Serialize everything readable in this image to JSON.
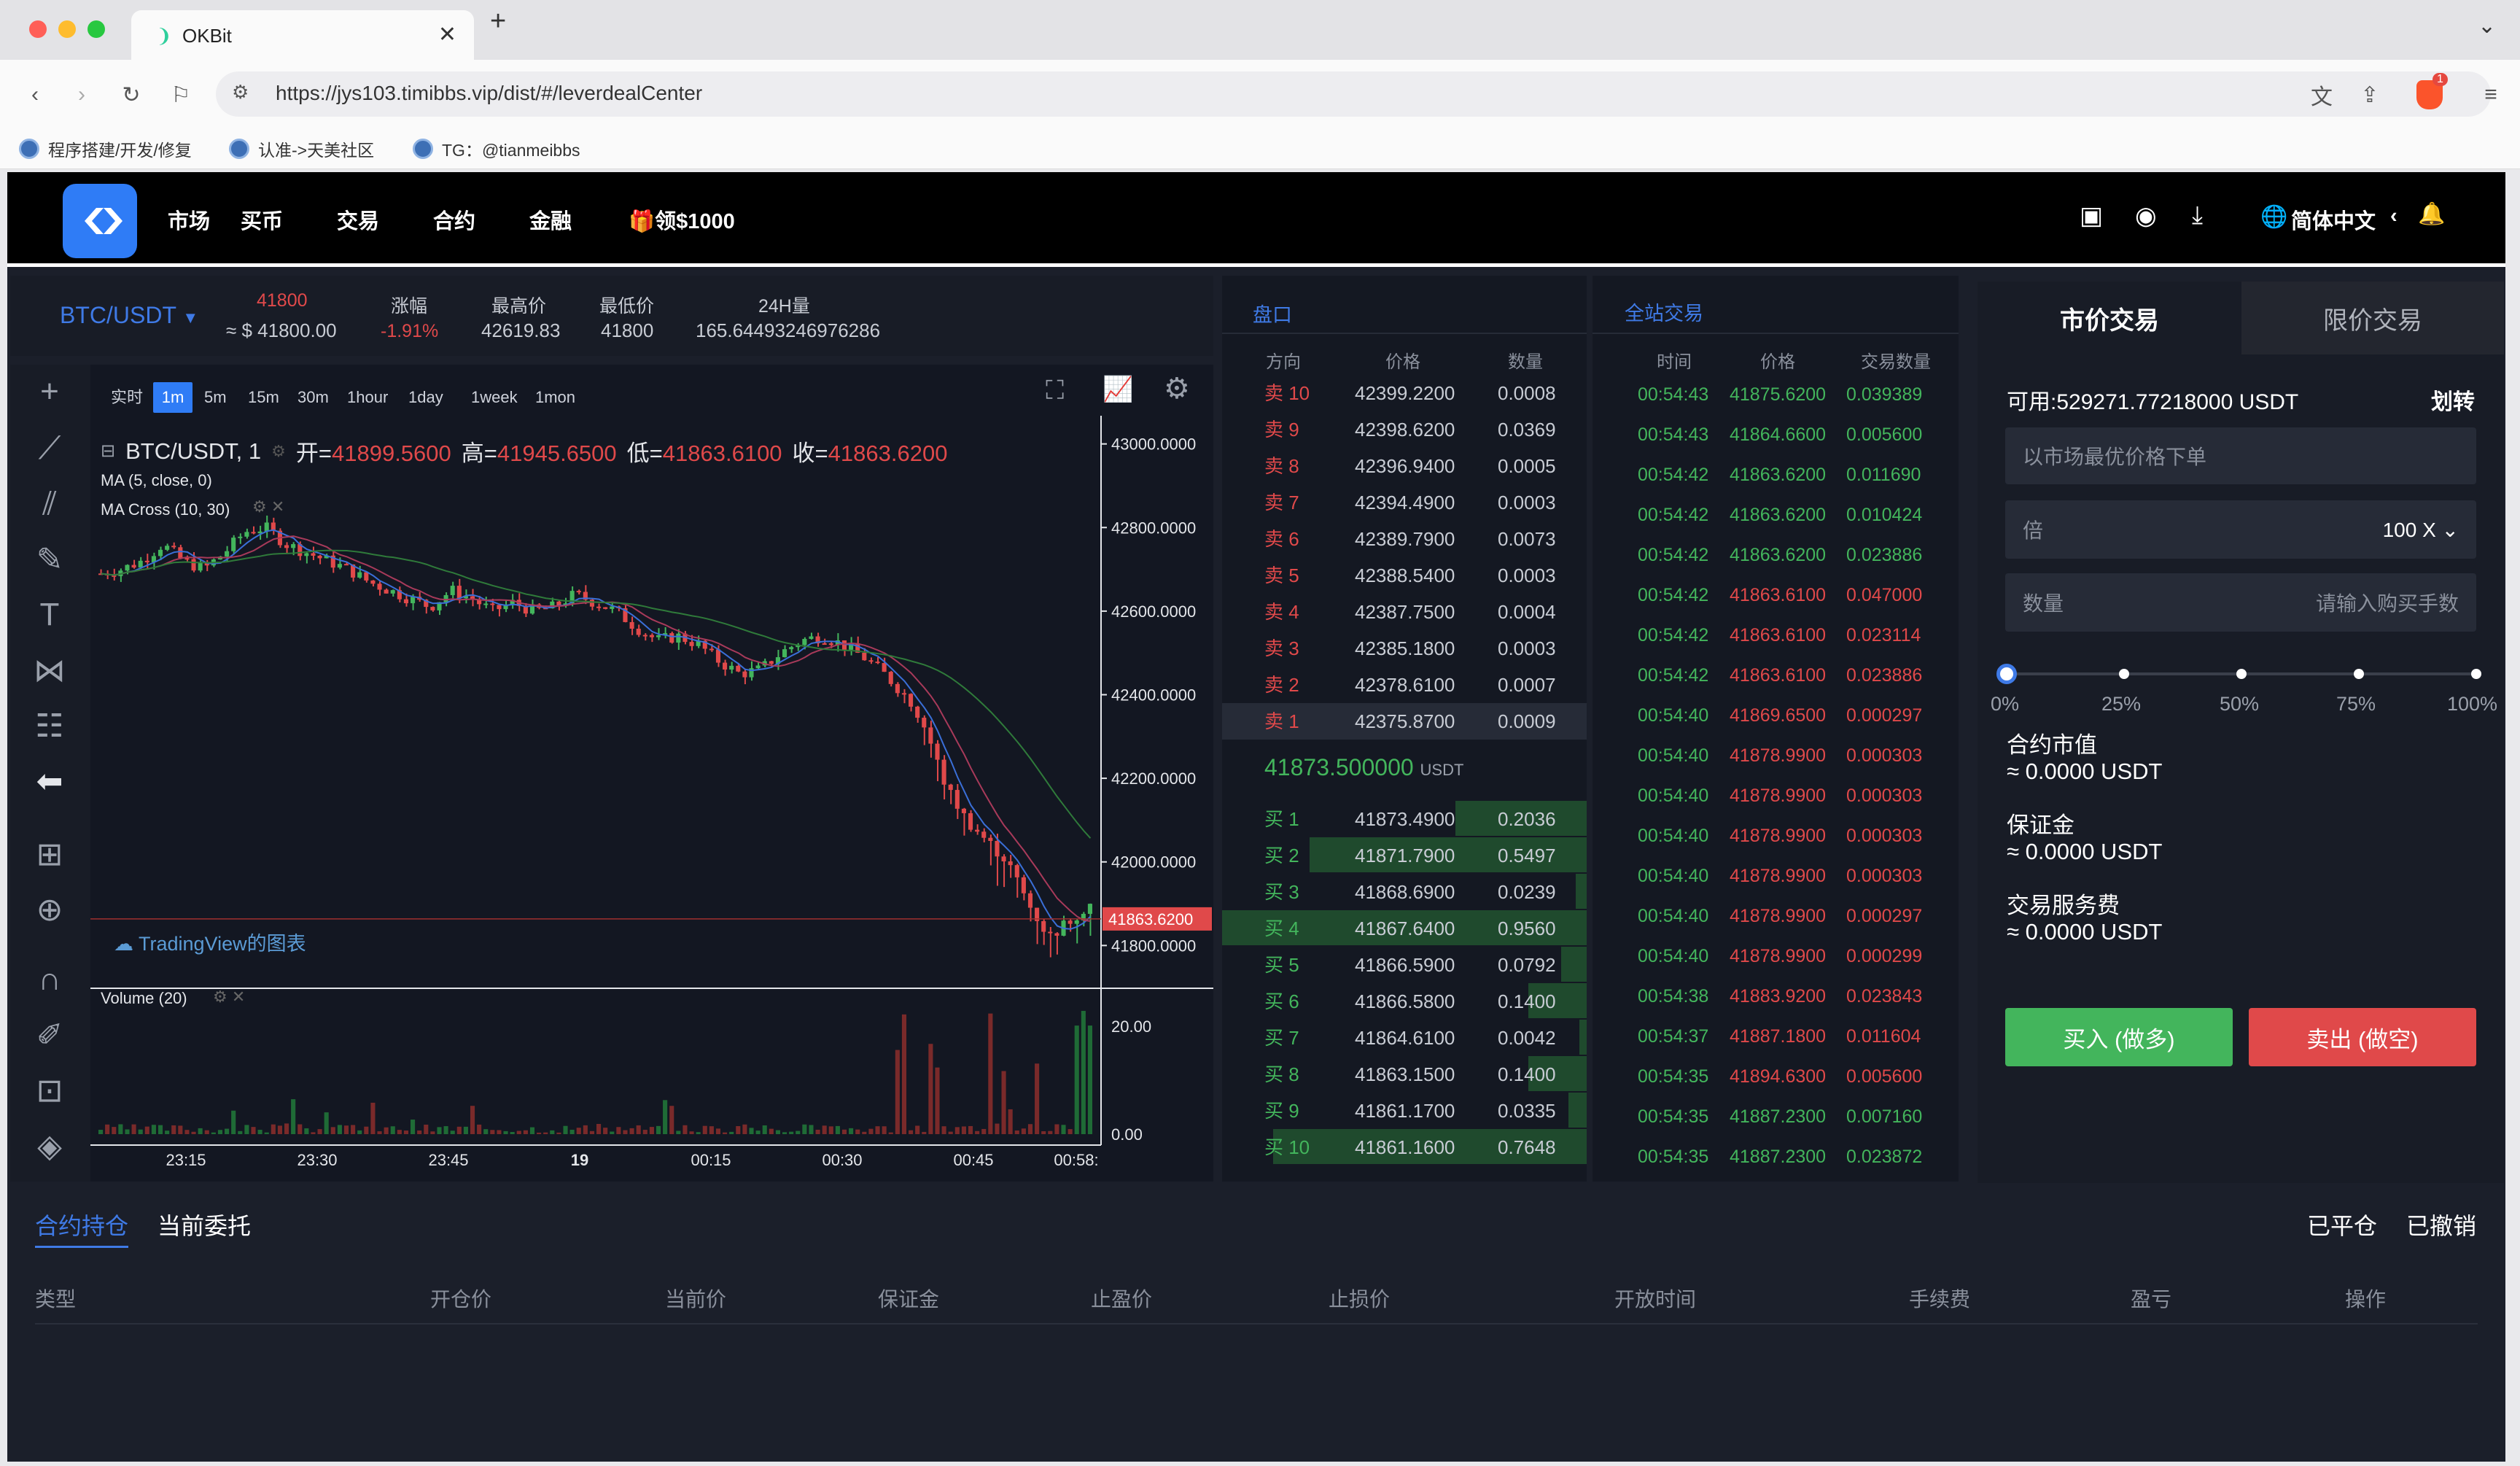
{
  "browser": {
    "tab_title": "OKBit",
    "url": "https://jys103.timibbs.vip/dist/#/leverdealCenter",
    "bookmarks": [
      "程序搭建/开发/修复",
      "认准->天美社区",
      "TG：@tianmeibbs"
    ],
    "ext_badge": "1"
  },
  "nav": {
    "items": [
      "市场",
      "买币",
      "交易",
      "合约",
      "金融"
    ],
    "promo": "领$1000",
    "language": "简体中文",
    "chevron": "‹"
  },
  "ticker": {
    "pair": "BTC/USDT",
    "last_price": "41800",
    "last_usd": "≈ $ 41800.00",
    "change_label": "涨幅",
    "change_value": "-1.91%",
    "high_label": "最高价",
    "high_value": "42619.83",
    "low_label": "最低价",
    "low_value": "41800",
    "volume_label": "24H量",
    "volume_value": "165.64493246976286"
  },
  "chart_toolbar": {
    "timeframes": [
      "实时",
      "1m",
      "5m",
      "15m",
      "30m",
      "1hour",
      "1day",
      "1week",
      "1mon"
    ],
    "active": "1m"
  },
  "chart_legend": {
    "symbol": "BTC/USDT, 1",
    "open_label": "开=",
    "open": "41899.5600",
    "high_label": "高=",
    "high": "41945.6500",
    "low_label": "低=",
    "low": "41863.6100",
    "close_label": "收=",
    "close": "41863.6200",
    "ma1": "MA (5, close, 0)",
    "ma2": "MA Cross (10, 30)",
    "volume": "Volume (20)",
    "watermark": "TradingView的图表",
    "last_tag": "41863.6200"
  },
  "chart_data": {
    "type": "candlestick",
    "price_axis": [
      "43000.0000",
      "42800.0000",
      "42600.0000",
      "42400.0000",
      "42200.0000",
      "42000.0000",
      "41800.0000"
    ],
    "volume_axis": [
      "20.00",
      "0.00"
    ],
    "time_axis": [
      "23:15",
      "23:30",
      "23:45",
      "19",
      "00:15",
      "00:30",
      "00:45",
      "00:58:"
    ],
    "ylim": [
      41750,
      43050
    ],
    "last_price": 41863.62,
    "close_path": [
      42690,
      42700,
      42720,
      42760,
      42720,
      42700,
      42740,
      42790,
      42800,
      42760,
      42740,
      42720,
      42700,
      42670,
      42650,
      42630,
      42610,
      42650,
      42630,
      42600,
      42620,
      42600,
      42610,
      42640,
      42620,
      42600,
      42560,
      42530,
      42540,
      42520,
      42480,
      42450,
      42460,
      42500,
      42530,
      42540,
      42520,
      42490,
      42450,
      42400,
      42320,
      42180,
      42100,
      42050,
      42000,
      41900,
      41820,
      41860,
      41900
    ]
  },
  "orderbook": {
    "title": "盘口",
    "headers": [
      "方向",
      "价格",
      "数量"
    ],
    "asks": [
      {
        "side": "卖 10",
        "price": "42399.2200",
        "qty": "0.0008"
      },
      {
        "side": "卖 9",
        "price": "42398.6200",
        "qty": "0.0369"
      },
      {
        "side": "卖 8",
        "price": "42396.9400",
        "qty": "0.0005"
      },
      {
        "side": "卖 7",
        "price": "42394.4900",
        "qty": "0.0003"
      },
      {
        "side": "卖 6",
        "price": "42389.7900",
        "qty": "0.0073"
      },
      {
        "side": "卖 5",
        "price": "42388.5400",
        "qty": "0.0003"
      },
      {
        "side": "卖 4",
        "price": "42387.7500",
        "qty": "0.0004"
      },
      {
        "side": "卖 3",
        "price": "42385.1800",
        "qty": "0.0003"
      },
      {
        "side": "卖 2",
        "price": "42378.6100",
        "qty": "0.0007"
      },
      {
        "side": "卖 1",
        "price": "42375.8700",
        "qty": "0.0009"
      }
    ],
    "mid_price": "41873.500000",
    "mid_unit": "USDT",
    "bids": [
      {
        "side": "买 1",
        "price": "41873.4900",
        "qty": "0.2036",
        "depth": 0.36
      },
      {
        "side": "买 2",
        "price": "41871.7900",
        "qty": "0.5497",
        "depth": 0.76
      },
      {
        "side": "买 3",
        "price": "41868.6900",
        "qty": "0.0239",
        "depth": 0.03
      },
      {
        "side": "买 4",
        "price": "41867.6400",
        "qty": "0.9560",
        "depth": 1.0
      },
      {
        "side": "买 5",
        "price": "41866.5900",
        "qty": "0.0792",
        "depth": 0.07
      },
      {
        "side": "买 6",
        "price": "41866.5800",
        "qty": "0.1400",
        "depth": 0.16
      },
      {
        "side": "买 7",
        "price": "41864.6100",
        "qty": "0.0042",
        "depth": 0.02
      },
      {
        "side": "买 8",
        "price": "41863.1500",
        "qty": "0.1400",
        "depth": 0.16
      },
      {
        "side": "买 9",
        "price": "41861.1700",
        "qty": "0.0335",
        "depth": 0.05
      },
      {
        "side": "买 10",
        "price": "41861.1600",
        "qty": "0.7648",
        "depth": 0.86
      }
    ]
  },
  "trades": {
    "title": "全站交易",
    "headers": [
      "时间",
      "价格",
      "交易数量"
    ],
    "rows": [
      {
        "t": "00:54:43",
        "p": "41875.6200",
        "q": "0.039389",
        "side": "buy"
      },
      {
        "t": "00:54:43",
        "p": "41864.6600",
        "q": "0.005600",
        "side": "buy"
      },
      {
        "t": "00:54:42",
        "p": "41863.6200",
        "q": "0.011690",
        "side": "buy"
      },
      {
        "t": "00:54:42",
        "p": "41863.6200",
        "q": "0.010424",
        "side": "buy"
      },
      {
        "t": "00:54:42",
        "p": "41863.6200",
        "q": "0.023886",
        "side": "buy"
      },
      {
        "t": "00:54:42",
        "p": "41863.6100",
        "q": "0.047000",
        "side": "sell"
      },
      {
        "t": "00:54:42",
        "p": "41863.6100",
        "q": "0.023114",
        "side": "sell"
      },
      {
        "t": "00:54:42",
        "p": "41863.6100",
        "q": "0.023886",
        "side": "sell"
      },
      {
        "t": "00:54:40",
        "p": "41869.6500",
        "q": "0.000297",
        "side": "sell"
      },
      {
        "t": "00:54:40",
        "p": "41878.9900",
        "q": "0.000303",
        "side": "sell"
      },
      {
        "t": "00:54:40",
        "p": "41878.9900",
        "q": "0.000303",
        "side": "sell"
      },
      {
        "t": "00:54:40",
        "p": "41878.9900",
        "q": "0.000303",
        "side": "sell"
      },
      {
        "t": "00:54:40",
        "p": "41878.9900",
        "q": "0.000303",
        "side": "sell"
      },
      {
        "t": "00:54:40",
        "p": "41878.9900",
        "q": "0.000297",
        "side": "sell"
      },
      {
        "t": "00:54:40",
        "p": "41878.9900",
        "q": "0.000299",
        "side": "sell"
      },
      {
        "t": "00:54:38",
        "p": "41883.9200",
        "q": "0.023843",
        "side": "sell"
      },
      {
        "t": "00:54:37",
        "p": "41887.1800",
        "q": "0.011604",
        "side": "sell"
      },
      {
        "t": "00:54:35",
        "p": "41894.6300",
        "q": "0.005600",
        "side": "sell"
      },
      {
        "t": "00:54:35",
        "p": "41887.2300",
        "q": "0.007160",
        "side": "buy"
      },
      {
        "t": "00:54:35",
        "p": "41887.2300",
        "q": "0.023872",
        "side": "buy"
      }
    ]
  },
  "trade_panel": {
    "tab_market": "市价交易",
    "tab_limit": "限价交易",
    "available": "可用:529271.77218000 USDT",
    "transfer": "划转",
    "market_placeholder": "以市场最优价格下单",
    "leverage_label": "倍",
    "leverage_value": "100 X",
    "qty_label": "数量",
    "qty_placeholder": "请输入购买手数",
    "slider_marks": [
      "0%",
      "25%",
      "50%",
      "75%",
      "100%"
    ],
    "slider_value": 0,
    "contract_value_label": "合约市值",
    "contract_value": "≈ 0.0000 USDT",
    "margin_label": "保证金",
    "margin_value": "≈ 0.0000 USDT",
    "fee_label": "交易服务费",
    "fee_value": "≈ 0.0000 USDT",
    "buy_button": "买入 (做多)",
    "sell_button": "卖出 (做空)"
  },
  "positions": {
    "tab_positions": "合约持仓",
    "tab_orders": "当前委托",
    "closed": "已平仓",
    "cancelled": "已撤销",
    "columns": [
      "类型",
      "开仓价",
      "当前价",
      "保证金",
      "止盈价",
      "止损价",
      "开放时间",
      "手续费",
      "盈亏",
      "操作"
    ]
  },
  "colors": {
    "accent": "#2f7cf6",
    "up": "#43b55c",
    "down": "#e0494a",
    "bg": "#181c26"
  }
}
